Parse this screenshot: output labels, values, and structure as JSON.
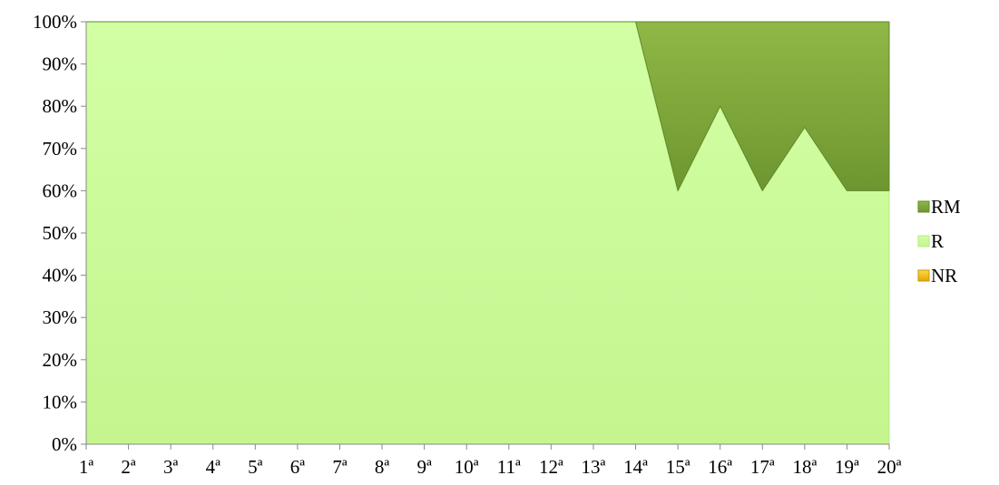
{
  "chart_data": {
    "type": "area",
    "stacked": "percent",
    "categories": [
      "1ª",
      "2ª",
      "3ª",
      "4ª",
      "5ª",
      "6ª",
      "7ª",
      "8ª",
      "9ª",
      "10ª",
      "11ª",
      "12ª",
      "13ª",
      "14ª",
      "15ª",
      "16ª",
      "17ª",
      "18ª",
      "19ª",
      "20ª"
    ],
    "series": [
      {
        "name": "NR",
        "color": "#f5c400",
        "values": [
          0,
          0,
          0,
          0,
          0,
          0,
          0,
          0,
          0,
          0,
          0,
          0,
          0,
          0,
          0,
          0,
          0,
          0,
          0,
          0
        ]
      },
      {
        "name": "R",
        "color": "#ccff99",
        "values": [
          100,
          100,
          100,
          100,
          100,
          100,
          100,
          100,
          100,
          100,
          100,
          100,
          100,
          100,
          60,
          80,
          60,
          75,
          60,
          60
        ]
      },
      {
        "name": "RM",
        "color": "#7faa3a",
        "values": [
          0,
          0,
          0,
          0,
          0,
          0,
          0,
          0,
          0,
          0,
          0,
          0,
          0,
          0,
          40,
          20,
          40,
          25,
          40,
          40
        ]
      }
    ],
    "legend_order": [
      "RM",
      "R",
      "NR"
    ],
    "yticks": [
      "0%",
      "10%",
      "20%",
      "30%",
      "40%",
      "50%",
      "60%",
      "70%",
      "80%",
      "90%",
      "100%"
    ],
    "ylim": [
      0,
      100
    ],
    "grid": false,
    "legend_position": "right",
    "title": "",
    "xlabel": "",
    "ylabel": ""
  }
}
